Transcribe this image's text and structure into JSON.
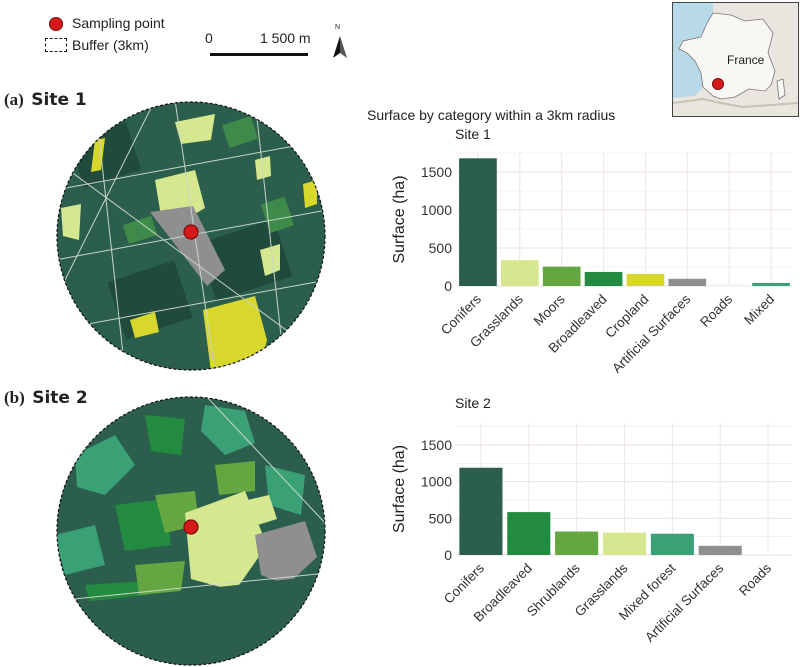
{
  "legend": {
    "sampling_point_label": "Sampling point",
    "buffer_label": "Buffer (3km)",
    "scale_start": "0",
    "scale_end": "1 500 m",
    "north_label": "N"
  },
  "inset_map": {
    "country_label": "France"
  },
  "panels": [
    {
      "letter": "(a)",
      "site": "Site 1"
    },
    {
      "letter": "(b)",
      "site": "Site 2"
    }
  ],
  "charts_heading": "Surface by category within a 3km radius",
  "colors": {
    "Conifers": "#2b5e4d",
    "Grasslands": "#d5e88f",
    "Moors": "#63a642",
    "Shrublands": "#63a642",
    "Broadleaved": "#238b3f",
    "Cropland": "#d8d72e",
    "Artificial Surfaces": "#8f8f8f",
    "Roads": "#f5f5f5",
    "Mixed": "#3aa075",
    "Mixed forest": "#3aa075",
    "sampling_point": "#d7191c"
  },
  "chart_data": [
    {
      "type": "bar",
      "title": "Site 1",
      "categories": [
        "Conifers",
        "Grasslands",
        "Moors",
        "Broadleaved",
        "Cropland",
        "Artificial Surfaces",
        "Roads",
        "Mixed"
      ],
      "values": [
        1680,
        340,
        255,
        185,
        160,
        95,
        25,
        40
      ],
      "xlabel": "",
      "ylabel": "Surface (ha)",
      "ylim": [
        0,
        1750
      ],
      "yticks": [
        0,
        500,
        1000,
        1500
      ],
      "grid": true
    },
    {
      "type": "bar",
      "title": "Site 2",
      "categories": [
        "Conifers",
        "Broadleaved",
        "Shrublands",
        "Grasslands",
        "Mixed forest",
        "Artificial Surfaces",
        "Roads"
      ],
      "values": [
        1190,
        585,
        320,
        305,
        290,
        125,
        0
      ],
      "xlabel": "",
      "ylabel": "Surface (ha)",
      "ylim": [
        0,
        1800
      ],
      "yticks": [
        0,
        500,
        1000,
        1500
      ],
      "grid": true
    }
  ]
}
